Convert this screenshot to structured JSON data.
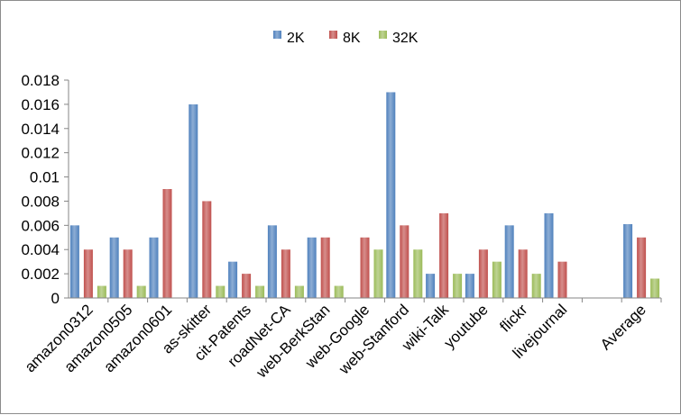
{
  "chart_data": {
    "type": "bar",
    "categories": [
      "amazon0312",
      "amazon0505",
      "amazon0601",
      "as-skitter",
      "cit-Patents",
      "roadNet-CA",
      "web-BerkStan",
      "web-Google",
      "web-Stanford",
      "wiki-Talk",
      "youtube",
      "flickr",
      "livejournal",
      "",
      "Average"
    ],
    "series": [
      {
        "name": "2K",
        "color": "#4f81bd",
        "values": [
          0.006,
          0.005,
          0.005,
          0.016,
          0.003,
          0.006,
          0.005,
          null,
          0.017,
          0.002,
          0.002,
          0.006,
          0.007,
          null,
          0.0061
        ]
      },
      {
        "name": "8K",
        "color": "#c0504d",
        "values": [
          0.004,
          0.004,
          0.009,
          0.008,
          0.002,
          0.004,
          0.005,
          0.005,
          0.006,
          0.007,
          0.004,
          0.004,
          0.003,
          null,
          0.005
        ]
      },
      {
        "name": "32K",
        "color": "#9bbb59",
        "values": [
          0.001,
          0.001,
          null,
          0.001,
          0.001,
          0.001,
          0.001,
          0.004,
          0.004,
          0.002,
          0.003,
          0.002,
          null,
          null,
          0.0016
        ]
      }
    ],
    "yticks": [
      "0",
      "0.002",
      "0.004",
      "0.006",
      "0.008",
      "0.01",
      "0.012",
      "0.014",
      "0.016",
      "0.018"
    ],
    "ylim": [
      0,
      0.018
    ],
    "grid": false,
    "legend": "top-center",
    "title": "",
    "xlabel": "",
    "ylabel": ""
  }
}
